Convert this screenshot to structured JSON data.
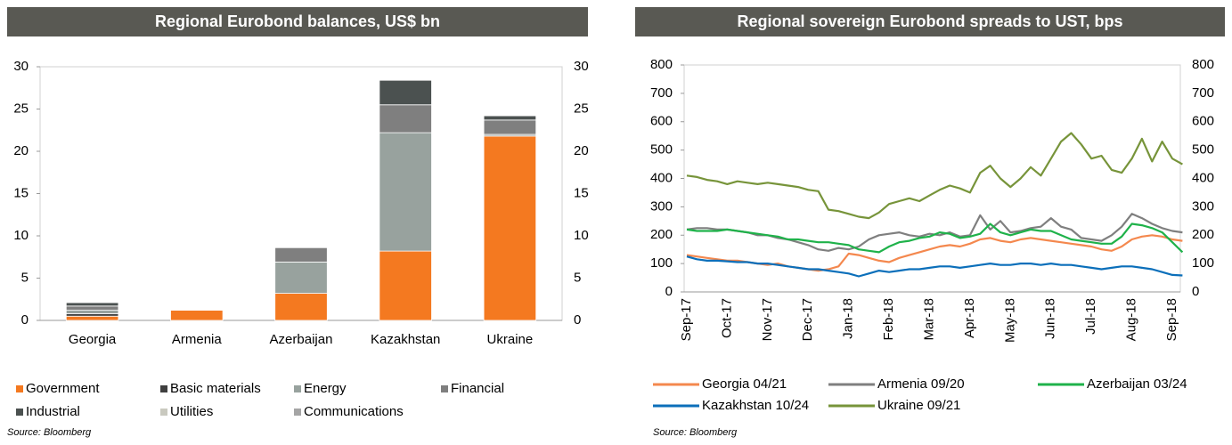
{
  "chart_data": [
    {
      "type": "bar",
      "stacked": true,
      "title": "Regional Eurobond balances, US$ bn",
      "source": "Source: Bloomberg",
      "categories": [
        "Georgia",
        "Armenia",
        "Azerbaijan",
        "Kazakhstan",
        "Ukraine"
      ],
      "ylim": [
        0,
        30
      ],
      "yticks": [
        0,
        5,
        10,
        15,
        20,
        25,
        30
      ],
      "series": [
        {
          "name": "Government",
          "color": "#f47920",
          "values": [
            0.5,
            1.2,
            3.2,
            8.2,
            21.8
          ]
        },
        {
          "name": "Basic materials",
          "color": "#3f3f3f",
          "values": [
            0.3,
            0,
            0,
            0,
            0
          ]
        },
        {
          "name": "Energy",
          "color": "#98a29e",
          "values": [
            0.4,
            0,
            3.7,
            14.0,
            0.2
          ]
        },
        {
          "name": "Financial",
          "color": "#7f7f7f",
          "values": [
            0.5,
            0,
            1.7,
            3.3,
            1.7
          ]
        },
        {
          "name": "Industrial",
          "color": "#4b5150",
          "values": [
            0.4,
            0,
            0,
            2.9,
            0.5
          ]
        },
        {
          "name": "Utilities",
          "color": "#c9c9bf",
          "values": [
            0,
            0,
            0,
            0,
            0
          ]
        },
        {
          "name": "Communications",
          "color": "#a5a5a5",
          "values": [
            0,
            0,
            0,
            0,
            0
          ]
        }
      ]
    },
    {
      "type": "line",
      "title": "Regional sovereign Eurobond spreads to UST, bps",
      "source": "Source: Bloomberg",
      "x": [
        "Sep-17",
        null,
        null,
        null,
        "Oct-17",
        null,
        null,
        null,
        "Nov-17",
        null,
        null,
        null,
        "Dec-17",
        null,
        null,
        null,
        "Jan-18",
        null,
        null,
        null,
        "Feb-18",
        null,
        null,
        null,
        "Mar-18",
        null,
        null,
        null,
        "Apr-18",
        null,
        null,
        null,
        "May-18",
        null,
        null,
        null,
        "Jun-18",
        null,
        null,
        null,
        "Jul-18",
        null,
        null,
        null,
        "Aug-18",
        null,
        null,
        null,
        "Sep-18",
        null
      ],
      "ylim": [
        0,
        800
      ],
      "yticks": [
        0,
        100,
        200,
        300,
        400,
        500,
        600,
        700,
        800
      ],
      "series": [
        {
          "name": "Georgia 04/21",
          "color": "#f4884e",
          "values": [
            130,
            125,
            120,
            115,
            110,
            110,
            105,
            100,
            95,
            100,
            90,
            85,
            80,
            75,
            80,
            90,
            135,
            130,
            120,
            110,
            105,
            120,
            130,
            140,
            150,
            160,
            165,
            160,
            170,
            185,
            190,
            180,
            175,
            185,
            190,
            185,
            180,
            175,
            170,
            165,
            160,
            150,
            145,
            160,
            185,
            195,
            200,
            195,
            185,
            180
          ]
        },
        {
          "name": "Armenia 09/20",
          "color": "#7f7f7f",
          "values": [
            220,
            225,
            225,
            220,
            220,
            215,
            210,
            200,
            200,
            190,
            185,
            175,
            165,
            150,
            145,
            155,
            150,
            160,
            185,
            200,
            205,
            210,
            200,
            195,
            205,
            200,
            210,
            195,
            200,
            270,
            220,
            250,
            210,
            215,
            225,
            230,
            260,
            230,
            220,
            190,
            185,
            180,
            200,
            230,
            275,
            260,
            240,
            225,
            215,
            210
          ]
        },
        {
          "name": "Azerbaijan 03/24",
          "color": "#1fb24a",
          "values": [
            220,
            215,
            215,
            215,
            220,
            215,
            210,
            205,
            200,
            195,
            185,
            185,
            180,
            175,
            175,
            170,
            165,
            150,
            145,
            140,
            160,
            175,
            180,
            190,
            195,
            210,
            205,
            190,
            195,
            205,
            240,
            210,
            200,
            210,
            220,
            215,
            215,
            200,
            185,
            180,
            175,
            170,
            170,
            195,
            240,
            235,
            225,
            210,
            175,
            140
          ]
        },
        {
          "name": "Kazakhstan 10/24",
          "color": "#0b6fba",
          "values": [
            125,
            115,
            110,
            110,
            108,
            105,
            105,
            100,
            100,
            95,
            90,
            85,
            80,
            80,
            75,
            70,
            65,
            55,
            65,
            75,
            70,
            75,
            80,
            80,
            85,
            90,
            90,
            85,
            90,
            95,
            100,
            95,
            95,
            100,
            100,
            95,
            100,
            95,
            95,
            90,
            85,
            80,
            85,
            90,
            90,
            85,
            80,
            70,
            60,
            58
          ]
        },
        {
          "name": "Ukraine 09/21",
          "color": "#77943a",
          "values": [
            410,
            405,
            395,
            390,
            380,
            390,
            385,
            380,
            385,
            380,
            375,
            370,
            360,
            355,
            290,
            285,
            275,
            265,
            260,
            280,
            310,
            320,
            330,
            320,
            340,
            360,
            375,
            365,
            350,
            420,
            445,
            400,
            370,
            400,
            440,
            410,
            470,
            530,
            560,
            520,
            470,
            480,
            430,
            420,
            470,
            540,
            460,
            530,
            470,
            450
          ]
        }
      ]
    }
  ]
}
